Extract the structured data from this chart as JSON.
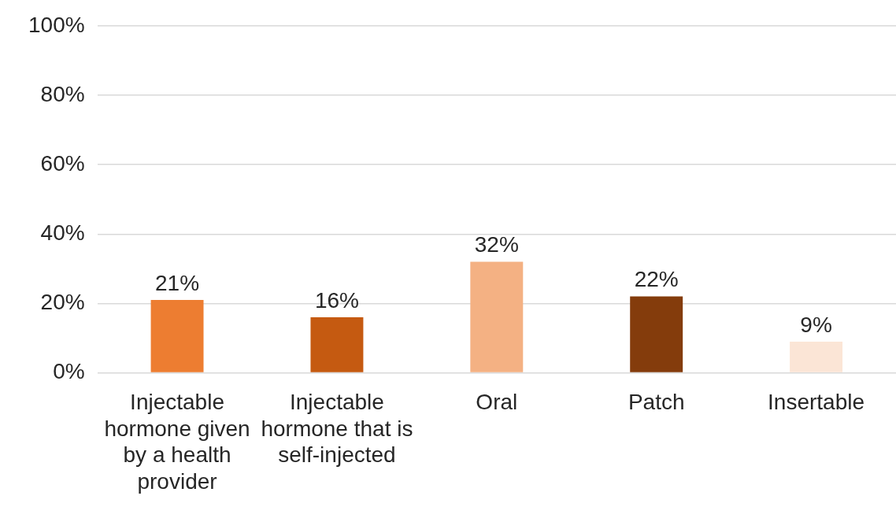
{
  "chart_data": {
    "type": "bar",
    "categories": [
      "Injectable hormone given by a health provider",
      "Injectable hormone that is self-injected",
      "Oral",
      "Patch",
      "Insertable"
    ],
    "values": [
      21,
      16,
      32,
      22,
      9
    ],
    "colors": [
      "#ed7d31",
      "#c55a11",
      "#f4b183",
      "#843c0c",
      "#fbe5d6"
    ],
    "value_labels": [
      "21%",
      "16%",
      "32%",
      "22%",
      "9%"
    ],
    "ylim": [
      0,
      100
    ],
    "yticks": [
      {
        "value": 0,
        "label": "0%"
      },
      {
        "value": 20,
        "label": "20%"
      },
      {
        "value": 40,
        "label": "40%"
      },
      {
        "value": 60,
        "label": "60%"
      },
      {
        "value": 80,
        "label": "80%"
      },
      {
        "value": 100,
        "label": "100%"
      }
    ],
    "grid": "y"
  }
}
